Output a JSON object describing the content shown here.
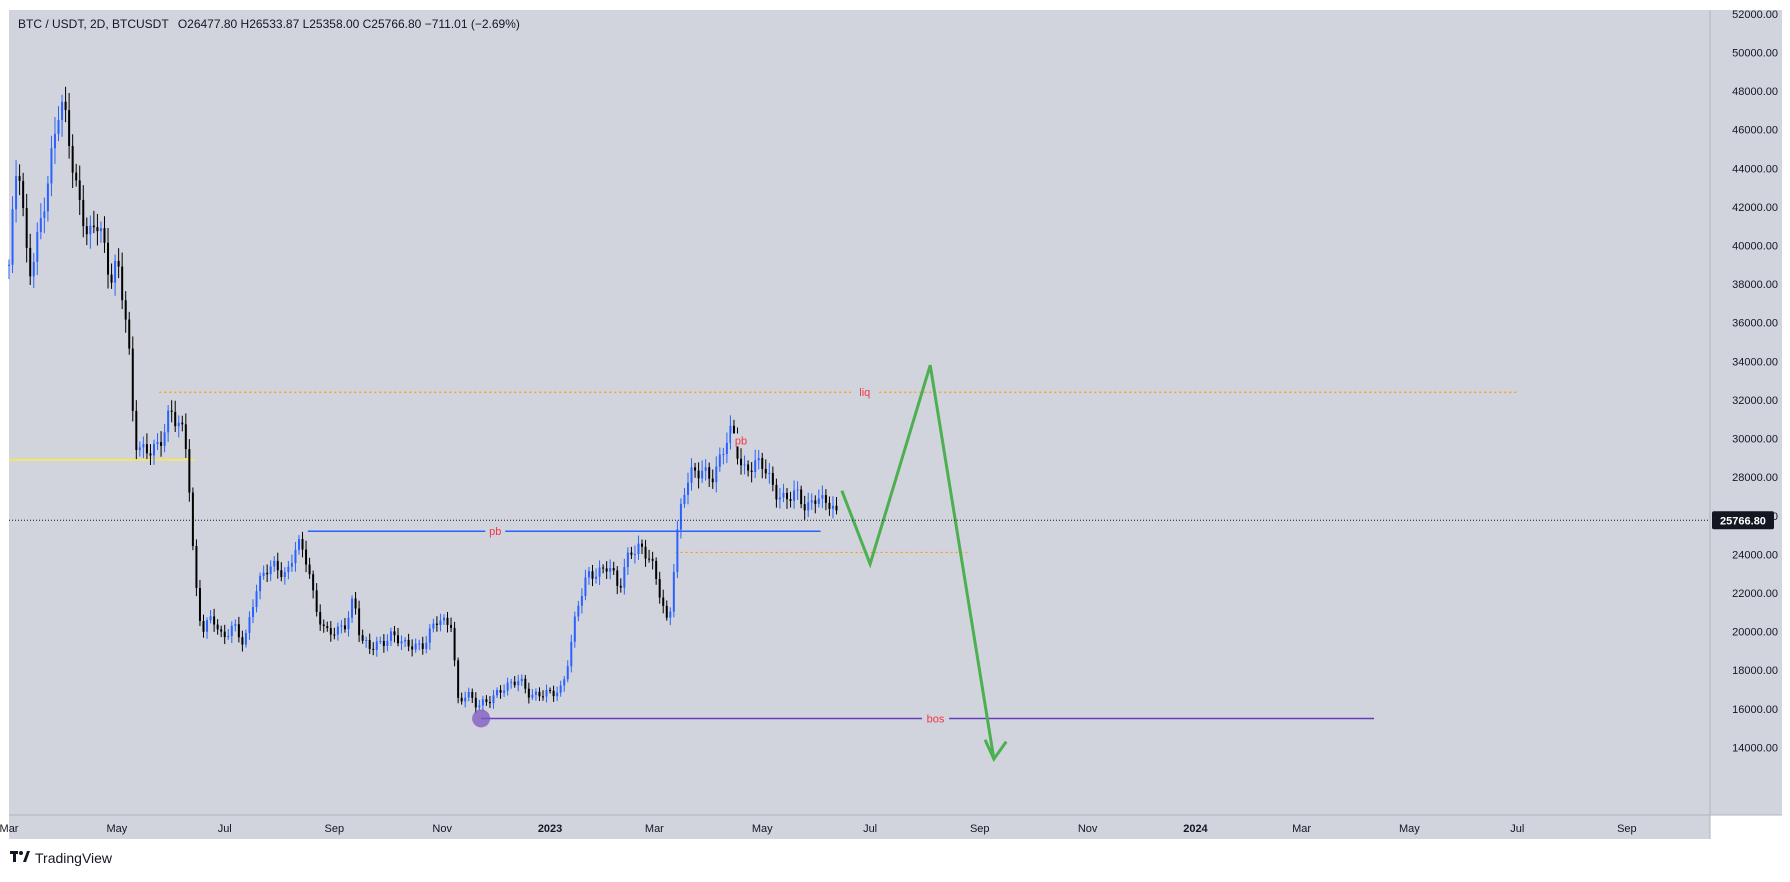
{
  "header": {
    "symbol": "BTC / USDT, 2D, BTCUSDT",
    "ohlc": "O26477.80 H26533.87 L25358.00 C25766.80 −711.01 (−2.69%)"
  },
  "watermark": {
    "logo_icon": "tradingview-logo-icon",
    "text": "TradingView"
  },
  "colors": {
    "background": "#d1d4dc",
    "up": "#2962ff",
    "down": "#000000",
    "liq_line": "#ff9800",
    "pb_line": "#2962ff",
    "bos_line": "#673ab7",
    "forecast": "#4caf50",
    "label_text": "#f23645",
    "yellow_level": "#ffeb3b"
  },
  "chart_data": {
    "type": "candlestick",
    "symbol": "BTCUSDT",
    "interval": "2D",
    "price_axis": {
      "ticks": [
        14000,
        16000,
        18000,
        20000,
        22000,
        24000,
        26000,
        28000,
        30000,
        32000,
        34000,
        36000,
        38000,
        40000,
        42000,
        44000,
        46000,
        48000,
        50000,
        52000
      ],
      "tick_labels": [
        "14000.00",
        "16000.00",
        "18000.00",
        "20000.00",
        "22000.00",
        "24000.00",
        "26000.00",
        "28000.00",
        "30000.00",
        "32000.00",
        "34000.00",
        "36000.00",
        "38000.00",
        "40000.00",
        "42000.00",
        "44000.00",
        "46000.00",
        "48000.00",
        "50000.00",
        "52000.00"
      ],
      "ylim": [
        10500,
        52200
      ],
      "last_price": 25766.8,
      "last_price_label": "25766.80"
    },
    "time_axis": {
      "labels": [
        "Mar",
        "May",
        "Jul",
        "Sep",
        "Nov",
        "2023",
        "Mar",
        "May",
        "Jul",
        "Sep",
        "Nov",
        "2024",
        "Mar",
        "May",
        "Jul",
        "Sep"
      ],
      "dates": [
        "2022-03-01",
        "2022-05-01",
        "2022-07-01",
        "2022-09-01",
        "2022-11-01",
        "2023-01-01",
        "2023-03-01",
        "2023-05-01",
        "2023-07-01",
        "2023-09-01",
        "2023-11-01",
        "2024-01-01",
        "2024-03-01",
        "2024-05-01",
        "2024-07-01",
        "2024-09-01"
      ],
      "bold": [
        false,
        false,
        false,
        false,
        false,
        true,
        false,
        false,
        false,
        false,
        false,
        true,
        false,
        false,
        false,
        false
      ],
      "range": [
        "2022-03-01",
        "2024-10-18"
      ]
    },
    "price_path": [
      [
        "2022-03-01",
        39000
      ],
      [
        "2022-03-06",
        44500
      ],
      [
        "2022-03-12",
        38500
      ],
      [
        "2022-03-18",
        41000
      ],
      [
        "2022-03-24",
        43500
      ],
      [
        "2022-03-30",
        47500
      ],
      [
        "2022-04-03",
        46500
      ],
      [
        "2022-04-09",
        42500
      ],
      [
        "2022-04-15",
        40000
      ],
      [
        "2022-04-21",
        41500
      ],
      [
        "2022-04-27",
        38500
      ],
      [
        "2022-05-01",
        39000
      ],
      [
        "2022-05-07",
        35500
      ],
      [
        "2022-05-11",
        30000
      ],
      [
        "2022-05-17",
        29500
      ],
      [
        "2022-05-25",
        29300
      ],
      [
        "2022-05-31",
        31500
      ],
      [
        "2022-06-06",
        31000
      ],
      [
        "2022-06-10",
        29000
      ],
      [
        "2022-06-14",
        22500
      ],
      [
        "2022-06-18",
        20000
      ],
      [
        "2022-06-24",
        21000
      ],
      [
        "2022-06-30",
        19500
      ],
      [
        "2022-07-06",
        20200
      ],
      [
        "2022-07-12",
        19500
      ],
      [
        "2022-07-18",
        22000
      ],
      [
        "2022-07-24",
        23000
      ],
      [
        "2022-07-30",
        23500
      ],
      [
        "2022-08-05",
        23000
      ],
      [
        "2022-08-11",
        24500
      ],
      [
        "2022-08-17",
        23500
      ],
      [
        "2022-08-21",
        21500
      ],
      [
        "2022-08-27",
        20000
      ],
      [
        "2022-09-02",
        19800
      ],
      [
        "2022-09-08",
        20500
      ],
      [
        "2022-09-12",
        22000
      ],
      [
        "2022-09-16",
        19500
      ],
      [
        "2022-09-22",
        19000
      ],
      [
        "2022-09-28",
        19500
      ],
      [
        "2022-10-04",
        20000
      ],
      [
        "2022-10-10",
        19200
      ],
      [
        "2022-10-16",
        19200
      ],
      [
        "2022-10-22",
        19500
      ],
      [
        "2022-10-28",
        20500
      ],
      [
        "2022-11-03",
        20300
      ],
      [
        "2022-11-07",
        20500
      ],
      [
        "2022-11-09",
        16500
      ],
      [
        "2022-11-15",
        16800
      ],
      [
        "2022-11-21",
        16000
      ],
      [
        "2022-11-27",
        16500
      ],
      [
        "2022-12-03",
        17000
      ],
      [
        "2022-12-09",
        17100
      ],
      [
        "2022-12-15",
        17500
      ],
      [
        "2022-12-21",
        16800
      ],
      [
        "2022-12-27",
        16700
      ],
      [
        "2023-01-02",
        16700
      ],
      [
        "2023-01-08",
        17200
      ],
      [
        "2023-01-12",
        19000
      ],
      [
        "2023-01-16",
        21000
      ],
      [
        "2023-01-22",
        22800
      ],
      [
        "2023-01-28",
        23200
      ],
      [
        "2023-02-03",
        23500
      ],
      [
        "2023-02-09",
        22000
      ],
      [
        "2023-02-15",
        24300
      ],
      [
        "2023-02-21",
        24500
      ],
      [
        "2023-02-27",
        23500
      ],
      [
        "2023-03-03",
        22300
      ],
      [
        "2023-03-09",
        20300
      ],
      [
        "2023-03-13",
        24500
      ],
      [
        "2023-03-17",
        27000
      ],
      [
        "2023-03-23",
        28200
      ],
      [
        "2023-03-29",
        28500
      ],
      [
        "2023-04-04",
        28000
      ],
      [
        "2023-04-10",
        29500
      ],
      [
        "2023-04-14",
        30500
      ],
      [
        "2023-04-20",
        28500
      ],
      [
        "2023-04-26",
        28500
      ],
      [
        "2023-05-02",
        28500
      ],
      [
        "2023-05-08",
        27500
      ],
      [
        "2023-05-14",
        26800
      ],
      [
        "2023-05-20",
        27000
      ],
      [
        "2023-05-26",
        26500
      ],
      [
        "2023-06-01",
        27200
      ],
      [
        "2023-06-05",
        26500
      ],
      [
        "2023-06-09",
        26450
      ],
      [
        "2023-06-13",
        25766.8
      ]
    ],
    "lines": [
      {
        "name": "liq",
        "y": 32400,
        "x_start": "2022-05-25",
        "x_end": "2024-07-01",
        "style": "dotted",
        "color": "#ff9800"
      },
      {
        "name": "pb",
        "y": 25200,
        "x_start": "2022-08-17",
        "x_end": "2023-06-03",
        "style": "solid",
        "color": "#2962ff"
      },
      {
        "name": "bos",
        "y": 15500,
        "x_start": "2022-11-23",
        "x_end": "2024-04-11",
        "style": "solid",
        "color": "#673ab7"
      },
      {
        "name": "level-24k",
        "y": 24100,
        "x_start": "2023-03-13",
        "x_end": "2023-08-25",
        "style": "dotted",
        "color": "#ff9800"
      },
      {
        "name": "yellow-level",
        "y": 28900,
        "x_start": "2022-03-01",
        "x_end": "2022-06-14",
        "style": "solid",
        "color": "#ffeb3b"
      }
    ],
    "annotations": [
      {
        "text": "liq",
        "x": "2023-06-28",
        "y": 32400
      },
      {
        "text": "pb",
        "x": "2022-12-01",
        "y": 25200
      },
      {
        "text": "bos",
        "x": "2023-08-07",
        "y": 15500
      },
      {
        "text": "pb",
        "x": "2023-04-19",
        "y": 29900
      }
    ],
    "marker": {
      "x": "2022-11-23",
      "y": 15500,
      "color": "#7e57c2"
    },
    "forecast_path": [
      [
        "2023-06-15",
        27300
      ],
      [
        "2023-07-01",
        23500
      ],
      [
        "2023-08-04",
        33800
      ],
      [
        "2023-09-09",
        13400
      ]
    ],
    "forecast_arrowhead": [
      [
        "2023-09-04",
        14400
      ],
      [
        "2023-09-09",
        13400
      ],
      [
        "2023-09-16",
        14300
      ]
    ]
  }
}
